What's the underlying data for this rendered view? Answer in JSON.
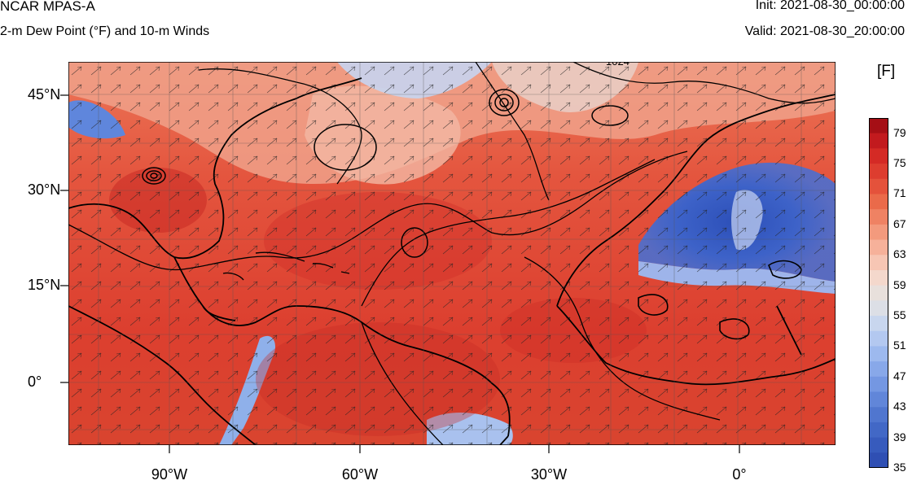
{
  "header": {
    "title": "NCAR MPAS-A",
    "subtitle": "2-m Dew Point (°F) and 10-m Winds",
    "init": "Init: 2021-08-30_00:00:00",
    "valid": "Valid: 2021-08-30_20:00:00"
  },
  "colorbar": {
    "unit": "[F]",
    "labels": [
      "79",
      "75",
      "71",
      "67",
      "63",
      "59",
      "55",
      "51",
      "47",
      "43",
      "39",
      "35"
    ],
    "colors": [
      "#a50f15",
      "#c21a1e",
      "#d42a25",
      "#dd3d2f",
      "#e4523b",
      "#ea6a4a",
      "#ef8263",
      "#f39a7d",
      "#f6b19a",
      "#f7c6b4",
      "#f4d8cc",
      "#e8e0dc",
      "#dcdfe6",
      "#c8d6ee",
      "#b3c8f0",
      "#9db9ee",
      "#88a8e9",
      "#7497e2",
      "#6186d9",
      "#5076cf",
      "#4268c6",
      "#375bbd",
      "#2f4fb3"
    ]
  },
  "axes": {
    "y_labels": [
      "45°N",
      "30°N",
      "15°N",
      "0°"
    ],
    "x_labels": [
      "90°W",
      "60°W",
      "30°W",
      "0°"
    ]
  },
  "map_annotations": {
    "contour_label": "1024"
  }
}
